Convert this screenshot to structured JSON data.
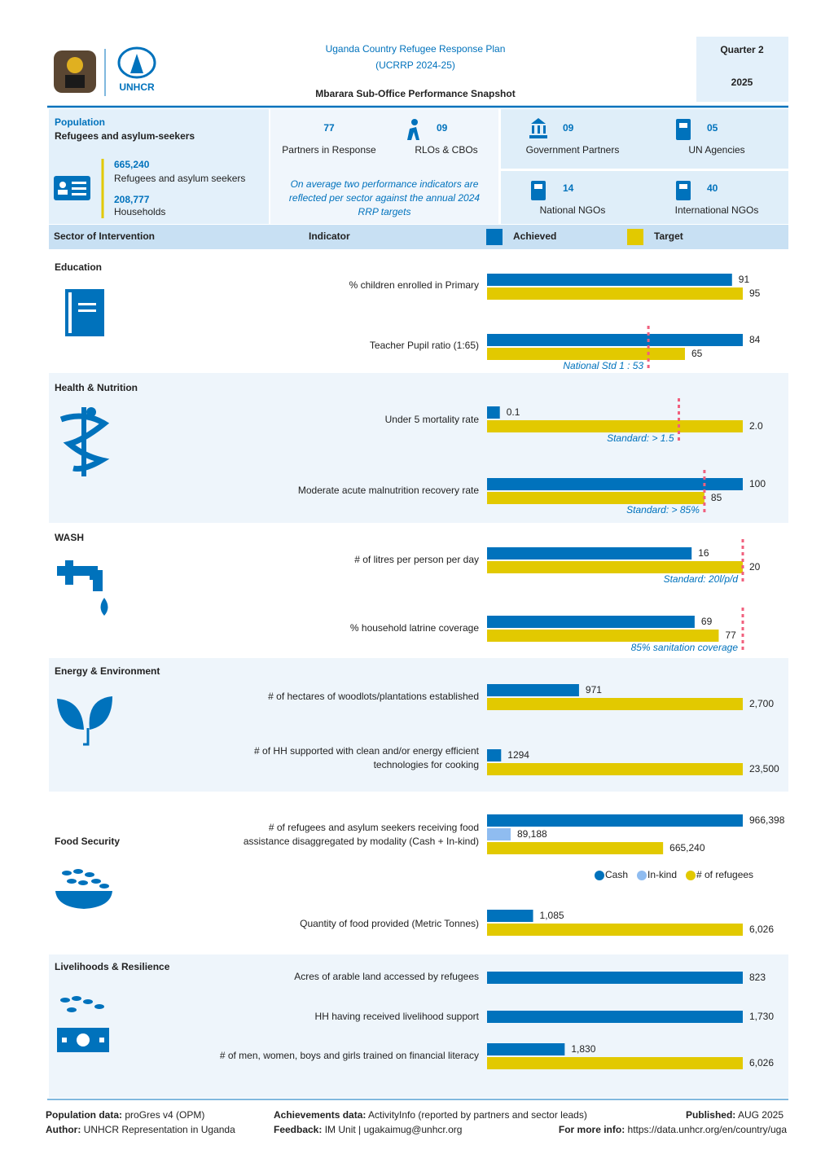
{
  "header": {
    "title_lines": [
      "Uganda Country Refugee Response Plan",
      "(UCRRP 2024-25)"
    ],
    "subtitle": "Mbarara Sub-Office Performance Snapshot",
    "quarter": "Quarter 2",
    "year": "2025",
    "logo_text": "UNHCR"
  },
  "population": {
    "title": "Population",
    "subtitle": "Refugees and asylum-seekers",
    "refugees_value": "665,240",
    "refugees_label": "Refugees and asylum seekers",
    "households_value": "208,777",
    "households_label": "Households"
  },
  "partners": {
    "items": [
      {
        "value": "77",
        "label": "Partners in Response"
      },
      {
        "value": "09",
        "label": "RLOs & CBOs"
      },
      {
        "value": "09",
        "label": "Government Partners"
      },
      {
        "value": "05",
        "label": "UN Agencies"
      },
      {
        "value": "14",
        "label": "National NGOs"
      },
      {
        "value": "40",
        "label": "International NGOs"
      }
    ],
    "note_lines": [
      "On average two performance indicators are",
      "reflected per sector against the annual 2024",
      "RRP targets"
    ]
  },
  "table_header": {
    "sector": "Sector of Intervention",
    "indicator": "Indicator",
    "legend": [
      {
        "name": "Achieved",
        "color": "#0072bc"
      },
      {
        "name": "Target",
        "color": "#e2c900"
      }
    ]
  },
  "standard_color": "#f0607e",
  "sectors": [
    {
      "name": "Education",
      "indicators": [
        {
          "label_lines": [
            "% children enrolled in Primary"
          ],
          "values": [
            91,
            95
          ]
        },
        {
          "label_lines": [
            "Teacher Pupil ratio (1:65)"
          ],
          "values": [
            84,
            65
          ],
          "standard": {
            "value": 53,
            "label": "National Std 1 : 53"
          }
        }
      ]
    },
    {
      "name": "Health & Nutrition",
      "indicators": [
        {
          "label_lines": [
            "Under 5 mortality rate"
          ],
          "values": [
            0.1,
            2.0
          ],
          "value_labels": [
            "0.1",
            "2.0"
          ],
          "standard": {
            "value": 1.5,
            "label": "Standard: > 1.5"
          }
        },
        {
          "label_lines": [
            "Moderate acute malnutrition recovery rate"
          ],
          "values": [
            100,
            85
          ],
          "standard": {
            "value": 85,
            "label": "Standard: > 85%"
          }
        }
      ]
    },
    {
      "name": "WASH",
      "indicators": [
        {
          "label_lines": [
            "# of litres per person per day"
          ],
          "values": [
            16,
            20
          ],
          "standard": {
            "value": 20,
            "label": "Standard: 20l/p/d"
          }
        },
        {
          "label_lines": [
            "% household latrine coverage"
          ],
          "values": [
            69,
            77
          ],
          "standard": {
            "value": 85,
            "label": "85% sanitation coverage"
          }
        }
      ]
    },
    {
      "name": "Energy & Environment",
      "indicators": [
        {
          "label_lines": [
            "# of hectares of woodlots/plantations established"
          ],
          "values": [
            971,
            2700
          ],
          "value_labels": [
            "971",
            "2,700"
          ]
        },
        {
          "label_lines": [
            "# of HH supported with clean and/or energy efficient",
            "technologies for cooking"
          ],
          "values": [
            1294,
            23500
          ],
          "value_labels": [
            "1294",
            "23,500"
          ]
        }
      ]
    },
    {
      "name": "Food Security",
      "indicators": [
        {
          "label_lines": [
            "# of refugees and asylum seekers receiving food",
            "assistance disaggregated by modality (Cash + In-kind)"
          ],
          "values": [
            966398,
            89188,
            665240
          ],
          "value_labels": [
            "966,398",
            "89,188",
            "665,240"
          ],
          "legend": [
            {
              "name": "Cash",
              "color": "#0072bc"
            },
            {
              "name": "In-kind",
              "color": "#8fbcf0"
            },
            {
              "name": "# of refugees",
              "color": "#e2c900"
            }
          ]
        },
        {
          "label_lines": [
            "Quantity of food provided (Metric Tonnes)"
          ],
          "values": [
            1085,
            6026
          ],
          "value_labels": [
            "1,085",
            "6,026"
          ]
        }
      ]
    },
    {
      "name": "Livelihoods & Resilience",
      "indicators": [
        {
          "label_lines": [
            "Acres of arable land accessed by refugees"
          ],
          "values": [
            823
          ]
        },
        {
          "label_lines": [
            "HH having received livelihood support"
          ],
          "values": [
            1730
          ],
          "value_labels": [
            "1,730"
          ]
        },
        {
          "label_lines": [
            "# of men, women, boys and girls trained on financial literacy"
          ],
          "values": [
            1830,
            6026
          ],
          "value_labels": [
            "1,830",
            "6,026"
          ]
        }
      ]
    }
  ],
  "footer": {
    "population_key": "Population data:",
    "population_value": "proGres v4 (OPM)",
    "author_key": "Author:",
    "author_value": "UNHCR Representation in Uganda",
    "achievements_key": "Achievements data:",
    "achievements_value": "ActivityInfo (reported by partners and sector leads)",
    "feedback_key": "Feedback:",
    "feedback_value": "IM Unit | ugakaimug@unhcr.org",
    "published_key": "Published:",
    "published_value": "AUG 2025",
    "info_key": "For more info:",
    "info_value": "https://data.unhcr.org/en/country/uga"
  }
}
